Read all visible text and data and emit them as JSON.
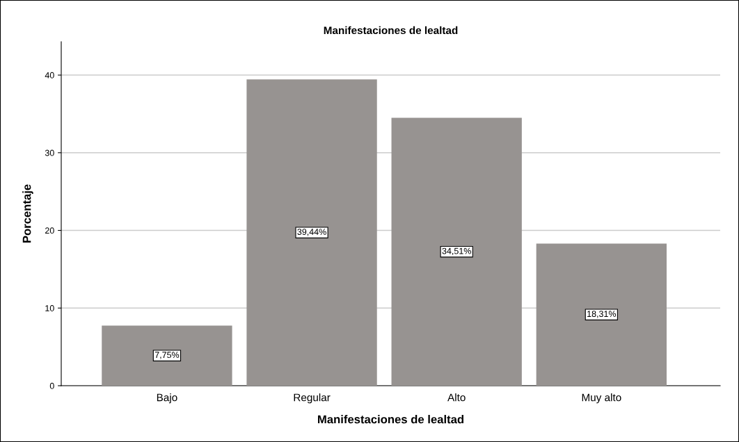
{
  "chart_data": {
    "type": "bar",
    "title": "Manifestaciones de lealtad",
    "xlabel": "Manifestaciones de lealtad",
    "ylabel": "Porcentaje",
    "categories": [
      "Bajo",
      "Regular",
      "Alto",
      "Muy alto"
    ],
    "values": [
      7.75,
      39.44,
      34.51,
      18.31
    ],
    "value_labels": [
      "7,75%",
      "39,44%",
      "34,51%",
      "18,31%"
    ],
    "color": "#979391",
    "ylim": [
      0,
      44.3
    ],
    "yticks": [
      0,
      10,
      20,
      30,
      40
    ],
    "grid": "y"
  }
}
